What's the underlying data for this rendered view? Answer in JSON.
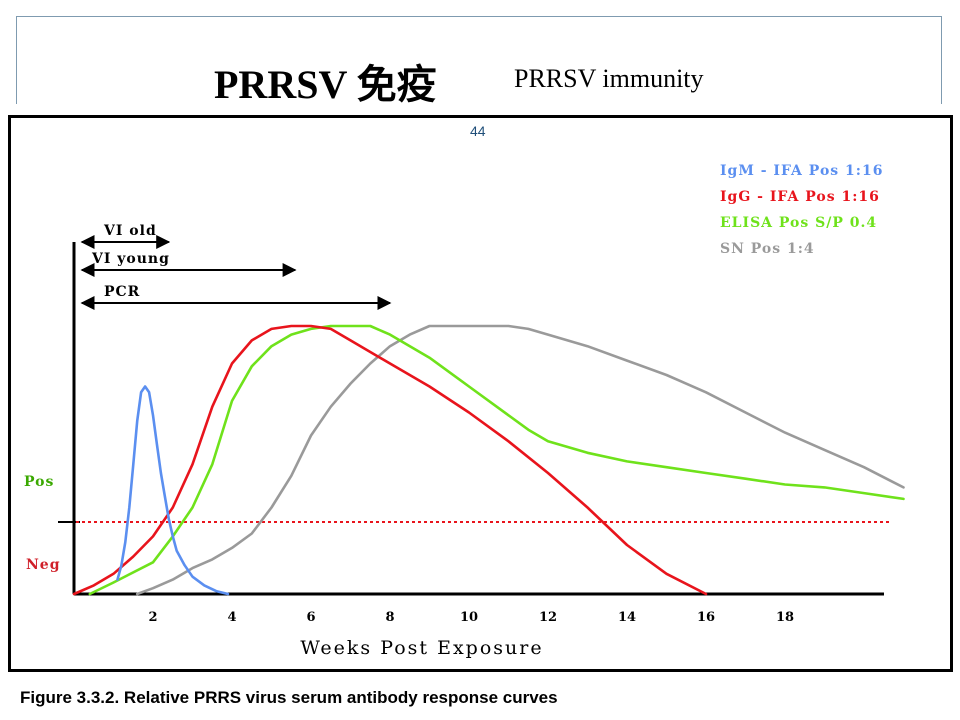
{
  "slide": {
    "title_main": "PRRSV 免疫",
    "title_sub": "PRRSV immunity",
    "page_number": "44",
    "caption": "Figure 3.3.2.  Relative PRRS virus serum antibody response curves"
  },
  "chart_data": {
    "type": "line",
    "xlabel": "Weeks Post Exposure",
    "ylabel": "",
    "xlim": [
      0,
      21
    ],
    "ylim": [
      0,
      100
    ],
    "x_ticks": [
      2,
      4,
      6,
      8,
      10,
      12,
      14,
      16,
      18
    ],
    "y_labels": {
      "pos": "Pos",
      "neg": "Neg"
    },
    "threshold": 25,
    "threshold_color": "#e8141c",
    "legend_position": "top-right",
    "series": [
      {
        "name": "IgM - IFA Pos 1:16",
        "color": "#5b8ff0",
        "points": [
          [
            1.1,
            5
          ],
          [
            1.2,
            10
          ],
          [
            1.3,
            18
          ],
          [
            1.4,
            30
          ],
          [
            1.5,
            45
          ],
          [
            1.6,
            60
          ],
          [
            1.7,
            70
          ],
          [
            1.8,
            72
          ],
          [
            1.9,
            70
          ],
          [
            2.0,
            62
          ],
          [
            2.1,
            52
          ],
          [
            2.2,
            42
          ],
          [
            2.3,
            34
          ],
          [
            2.4,
            26
          ],
          [
            2.5,
            20
          ],
          [
            2.6,
            15
          ],
          [
            2.8,
            10
          ],
          [
            3.0,
            6
          ],
          [
            3.3,
            3
          ],
          [
            3.6,
            1
          ],
          [
            3.9,
            0
          ]
        ]
      },
      {
        "name": "IgG - IFA Pos 1:16",
        "color": "#e8141c",
        "points": [
          [
            0,
            0
          ],
          [
            0.5,
            3
          ],
          [
            1,
            7
          ],
          [
            1.5,
            13
          ],
          [
            2,
            20
          ],
          [
            2.5,
            30
          ],
          [
            3,
            45
          ],
          [
            3.5,
            65
          ],
          [
            4,
            80
          ],
          [
            4.5,
            88
          ],
          [
            5,
            92
          ],
          [
            5.5,
            93
          ],
          [
            6,
            93
          ],
          [
            6.5,
            92
          ],
          [
            7,
            88
          ],
          [
            8,
            80
          ],
          [
            9,
            72
          ],
          [
            10,
            63
          ],
          [
            11,
            53
          ],
          [
            12,
            42
          ],
          [
            13,
            30
          ],
          [
            14,
            17
          ],
          [
            15,
            7
          ],
          [
            16,
            0
          ]
        ]
      },
      {
        "name": "ELISA Pos S/P  0.4",
        "color": "#6fe21b",
        "points": [
          [
            0.4,
            0
          ],
          [
            1,
            4
          ],
          [
            2,
            11
          ],
          [
            2.5,
            20
          ],
          [
            3,
            30
          ],
          [
            3.5,
            45
          ],
          [
            4,
            67
          ],
          [
            4.5,
            79
          ],
          [
            5,
            86
          ],
          [
            5.5,
            90
          ],
          [
            6,
            92
          ],
          [
            6.5,
            93
          ],
          [
            7,
            93
          ],
          [
            7.5,
            93
          ],
          [
            8,
            90
          ],
          [
            9,
            82
          ],
          [
            10,
            72
          ],
          [
            11,
            62
          ],
          [
            11.5,
            57
          ],
          [
            12,
            53
          ],
          [
            13,
            49
          ],
          [
            14,
            46
          ],
          [
            15,
            44
          ],
          [
            16,
            42
          ],
          [
            17,
            40
          ],
          [
            18,
            38
          ],
          [
            19,
            37
          ],
          [
            20,
            35
          ],
          [
            21,
            33
          ]
        ]
      },
      {
        "name": "SN Pos  1:4",
        "color": "#9a9a9a",
        "points": [
          [
            1.6,
            0
          ],
          [
            2,
            2
          ],
          [
            2.5,
            5
          ],
          [
            3,
            9
          ],
          [
            3.5,
            12
          ],
          [
            4,
            16
          ],
          [
            4.5,
            21
          ],
          [
            5,
            30
          ],
          [
            5.5,
            41
          ],
          [
            6,
            55
          ],
          [
            6.5,
            65
          ],
          [
            7,
            73
          ],
          [
            7.5,
            80
          ],
          [
            8,
            86
          ],
          [
            8.5,
            90
          ],
          [
            9,
            93
          ],
          [
            9.5,
            93
          ],
          [
            10,
            93
          ],
          [
            10.5,
            93
          ],
          [
            11,
            93
          ],
          [
            11.5,
            92
          ],
          [
            12,
            90
          ],
          [
            13,
            86
          ],
          [
            14,
            81
          ],
          [
            15,
            76
          ],
          [
            16,
            70
          ],
          [
            17,
            63
          ],
          [
            18,
            56
          ],
          [
            19,
            50
          ],
          [
            20,
            44
          ],
          [
            21,
            37
          ]
        ]
      }
    ],
    "arrows": [
      {
        "label": "VI old",
        "from": 0.2,
        "to": 2.4
      },
      {
        "label": "VI young",
        "from": 0.2,
        "to": 5.6
      },
      {
        "label": "PCR",
        "from": 0.2,
        "to": 8.0
      }
    ]
  }
}
